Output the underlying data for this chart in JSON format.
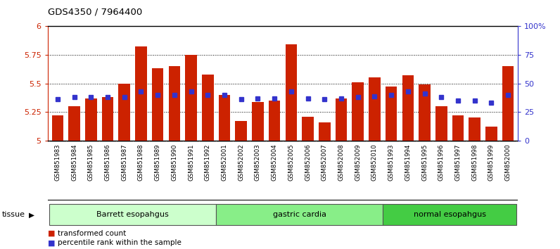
{
  "title": "GDS4350 / 7964400",
  "samples": [
    "GSM851983",
    "GSM851984",
    "GSM851985",
    "GSM851986",
    "GSM851987",
    "GSM851988",
    "GSM851989",
    "GSM851990",
    "GSM851991",
    "GSM851992",
    "GSM852001",
    "GSM852002",
    "GSM852003",
    "GSM852004",
    "GSM852005",
    "GSM852006",
    "GSM852007",
    "GSM852008",
    "GSM852009",
    "GSM852010",
    "GSM851993",
    "GSM851994",
    "GSM851995",
    "GSM851996",
    "GSM851997",
    "GSM851998",
    "GSM851999",
    "GSM852000"
  ],
  "red_values": [
    5.22,
    5.3,
    5.37,
    5.38,
    5.5,
    5.82,
    5.63,
    5.65,
    5.75,
    5.58,
    5.4,
    5.17,
    5.34,
    5.35,
    5.84,
    5.21,
    5.16,
    5.37,
    5.51,
    5.55,
    5.47,
    5.57,
    5.49,
    5.3,
    5.22,
    5.2,
    5.12,
    5.65
  ],
  "blue_values": [
    5.36,
    5.38,
    5.38,
    5.38,
    5.38,
    5.43,
    5.4,
    5.4,
    5.43,
    5.4,
    5.4,
    5.36,
    5.37,
    5.37,
    5.43,
    5.37,
    5.36,
    5.37,
    5.38,
    5.39,
    5.4,
    5.43,
    5.41,
    5.38,
    5.35,
    5.35,
    5.33,
    5.4
  ],
  "groups": [
    {
      "label": "Barrett esopahgus",
      "start": 0,
      "end": 9,
      "color": "#ccffcc"
    },
    {
      "label": "gastric cardia",
      "start": 10,
      "end": 19,
      "color": "#88ee88"
    },
    {
      "label": "normal esopahgus",
      "start": 20,
      "end": 27,
      "color": "#44cc44"
    }
  ],
  "ymin": 5.0,
  "ymax": 6.0,
  "yticks_left": [
    5.0,
    5.25,
    5.5,
    5.75,
    6.0
  ],
  "yticks_right": [
    0,
    25,
    50,
    75,
    100
  ],
  "grid_vals": [
    5.25,
    5.5,
    5.75
  ],
  "bar_color": "#cc2200",
  "blue_color": "#3333cc",
  "xtick_bg": "#c8c8c8",
  "plot_bg": "#ffffff",
  "legend_items": [
    "transformed count",
    "percentile rank within the sample"
  ],
  "legend_colors": [
    "#cc2200",
    "#3333cc"
  ]
}
